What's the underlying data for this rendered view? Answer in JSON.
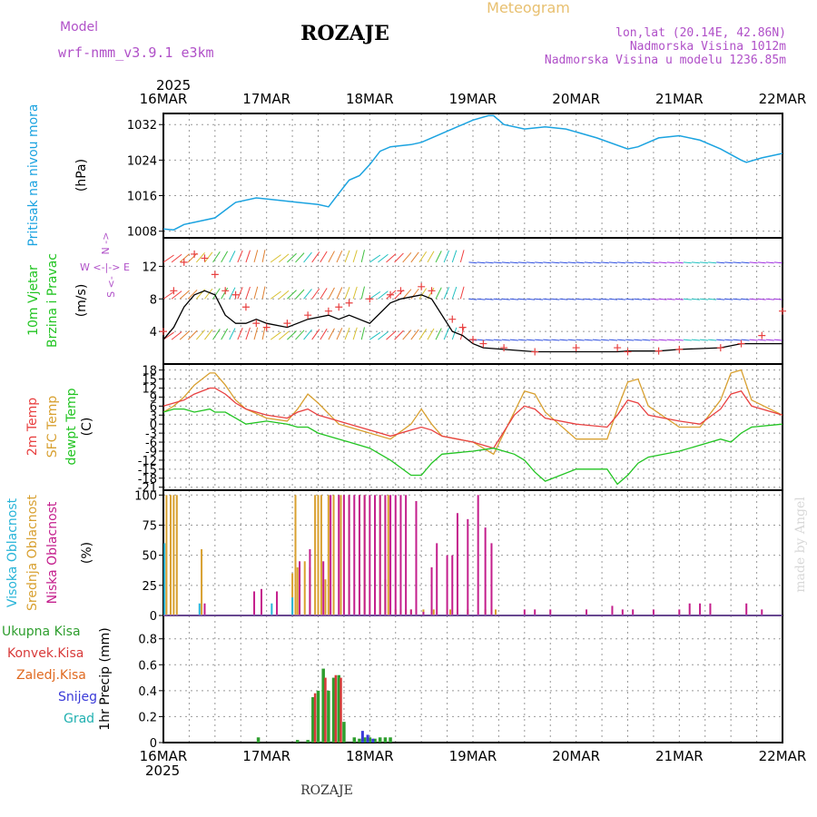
{
  "header": {
    "model_label": "Model",
    "model_name": "wrf-nmm_v3.9.1 e3km",
    "station": "ROZAJE",
    "chart_title": "Meteogram",
    "lonlat": "lon,lat (20.14E, 42.86N)",
    "altitude": "Nadmorska Visina 1012m",
    "model_altitude": "Nadmorska Visina u modelu 1236.85m",
    "year_top": "2025",
    "year_bottom": "2025",
    "footer_station": "ROZAJE",
    "credit": "made by Angel"
  },
  "colors": {
    "pressure": "#1ba3e0",
    "temp2m": "#e84040",
    "sfc": "#d8a030",
    "dewpt": "#22c422",
    "high_cloud": "#28b4d8",
    "mid_cloud": "#d8a030",
    "low_cloud": "#c41e8c",
    "total_precip": "#2e9e2e",
    "conv_precip": "#d83a3a",
    "frz_precip": "#e06a20",
    "snow": "#3a3ad8",
    "hail": "#20b0b0",
    "wind_speed": "#000000",
    "gust": "#e84040",
    "model_label": "#b050c8"
  },
  "chart_data": [
    {
      "type": "line",
      "id": "pressure",
      "title": "Pritisak na nivou mora",
      "ylabel": "(hPa)",
      "ylim": [
        1006.5,
        1034.5
      ],
      "yticks": [
        1008,
        1016,
        1024,
        1032
      ],
      "x_days": [
        0,
        0.1,
        0.2,
        0.3,
        0.5,
        0.7,
        0.9,
        1.1,
        1.3,
        1.5,
        1.6,
        1.7,
        1.8,
        1.9,
        2.0,
        2.1,
        2.2,
        2.4,
        2.5,
        2.6,
        2.8,
        3.0,
        3.15,
        3.2,
        3.3,
        3.5,
        3.7,
        3.9,
        4.2,
        4.5,
        4.6,
        4.8,
        5.0,
        5.2,
        5.4,
        5.6,
        5.65,
        5.8,
        6.0
      ],
      "values": [
        1008.5,
        1008.3,
        1009.5,
        1010.0,
        1011.0,
        1014.5,
        1015.5,
        1015.0,
        1014.5,
        1014.0,
        1013.5,
        1016.5,
        1019.5,
        1020.5,
        1023.0,
        1026.0,
        1027.0,
        1027.5,
        1028.0,
        1029.0,
        1031.0,
        1033.0,
        1034.0,
        1034.0,
        1032.0,
        1031.0,
        1031.5,
        1031.0,
        1029.0,
        1026.5,
        1027.0,
        1029.0,
        1029.5,
        1028.5,
        1026.5,
        1024.0,
        1023.5,
        1024.5,
        1025.5
      ]
    },
    {
      "type": "line",
      "id": "wind",
      "title": "10m Vjetar",
      "subtitle": "Brzina i Pravac",
      "ylabel": "(m/s)",
      "ylim": [
        0,
        15.5
      ],
      "yticks": [
        4,
        8,
        12
      ],
      "compass": {
        "n": "N",
        "w": "W",
        "e": "E",
        "s": "S"
      },
      "x_days": [
        0,
        0.1,
        0.2,
        0.3,
        0.4,
        0.5,
        0.6,
        0.7,
        0.8,
        0.9,
        1.0,
        1.2,
        1.4,
        1.6,
        1.7,
        1.8,
        2.0,
        2.2,
        2.3,
        2.5,
        2.6,
        2.8,
        2.9,
        3.0,
        3.1,
        3.3,
        3.6,
        4.0,
        4.4,
        4.5,
        4.8,
        5.0,
        5.4,
        5.6,
        5.8,
        6.0
      ],
      "series": [
        {
          "name": "speed",
          "values": [
            3.0,
            4.5,
            7.0,
            8.5,
            9.0,
            8.5,
            6.0,
            5.0,
            5.0,
            5.5,
            5.0,
            4.5,
            5.5,
            6.0,
            5.5,
            6.0,
            5.0,
            7.5,
            8.0,
            8.5,
            8.0,
            4.0,
            3.5,
            2.5,
            2.0,
            1.8,
            1.5,
            1.5,
            1.5,
            1.6,
            1.6,
            1.8,
            2.0,
            2.5,
            2.5,
            2.5
          ]
        },
        {
          "name": "gust",
          "values": [
            4.0,
            9.0,
            12.5,
            13.5,
            13.0,
            11.0,
            9.0,
            8.5,
            7.0,
            5.0,
            4.5,
            5.0,
            6.0,
            6.5,
            7.0,
            7.5,
            8.0,
            8.5,
            9.0,
            9.5,
            9.0,
            5.5,
            4.5,
            3.0,
            2.5,
            2.0,
            1.5,
            2.0,
            2.0,
            1.5,
            1.6,
            1.8,
            2.0,
            2.5,
            3.5,
            6.5
          ]
        }
      ]
    },
    {
      "type": "line",
      "id": "temperature",
      "title": "2m Temp",
      "title2": "SFC Temp",
      "title3": "dewpt Temp",
      "ylabel": "(C)",
      "ylim": [
        -22,
        20
      ],
      "yticks": [
        18,
        15,
        12,
        9,
        6,
        3,
        0,
        -3,
        -6,
        -9,
        -12,
        -15,
        -18,
        -21
      ],
      "x_days": [
        0,
        0.1,
        0.2,
        0.3,
        0.45,
        0.5,
        0.6,
        0.7,
        0.8,
        1.0,
        1.2,
        1.3,
        1.4,
        1.5,
        1.7,
        2.0,
        2.2,
        2.4,
        2.5,
        2.6,
        2.7,
        3.0,
        3.2,
        3.4,
        3.5,
        3.6,
        3.7,
        4.0,
        4.3,
        4.4,
        4.5,
        4.6,
        4.7,
        5.0,
        5.2,
        5.4,
        5.5,
        5.6,
        5.7,
        6.0
      ],
      "series": [
        {
          "name": "2m Temp",
          "values": [
            6,
            7,
            8,
            10,
            12,
            12,
            10,
            7,
            5,
            3,
            2,
            4,
            5,
            3,
            1,
            -2,
            -4,
            -2,
            -1,
            -2,
            -4,
            -6,
            -8,
            3,
            6,
            5,
            2,
            0,
            -1,
            3,
            8,
            7,
            3,
            1,
            0,
            5,
            10,
            11,
            6,
            3
          ]
        },
        {
          "name": "SFC Temp",
          "values": [
            4,
            6,
            9,
            13,
            17,
            17,
            13,
            8,
            5,
            2,
            1,
            5,
            10,
            7,
            0,
            -3,
            -5,
            0,
            5,
            0,
            -4,
            -6,
            -10,
            4,
            11,
            10,
            4,
            -5,
            -5,
            5,
            14,
            15,
            6,
            -1,
            -1,
            8,
            17,
            18,
            8,
            3
          ]
        },
        {
          "name": "dewpt Temp",
          "values": [
            4,
            5,
            5,
            4,
            5,
            4,
            4,
            2,
            0,
            1,
            0,
            -1,
            -1,
            -3,
            -5,
            -8,
            -12,
            -17,
            -17,
            -13,
            -10,
            -9,
            -8,
            -10,
            -12,
            -16,
            -19,
            -15,
            -15,
            -20,
            -17,
            -13,
            -11,
            -9,
            -7,
            -5,
            -6,
            -3,
            -1,
            0
          ]
        }
      ]
    },
    {
      "type": "bar",
      "id": "clouds",
      "title": "Visoka Oblacnost",
      "title2": "Srednja Oblacnost",
      "title3": "Niska Oblacnost",
      "ylabel": "(%)",
      "ylim": [
        0,
        104
      ],
      "yticks": [
        0,
        25,
        50,
        75,
        100
      ],
      "series": [
        {
          "name": "Visoka",
          "x_days": [
            0.01,
            0.35,
            1.05,
            1.25
          ],
          "values": [
            60,
            10,
            10,
            15
          ]
        },
        {
          "name": "Srednja",
          "x_days": [
            0.03,
            0.07,
            0.1,
            0.13,
            0.37,
            1.25,
            1.28,
            1.3,
            1.37,
            1.42,
            1.47,
            1.5,
            1.53,
            1.57,
            1.6,
            1.65,
            1.72,
            1.8,
            1.9,
            1.95,
            2.1,
            2.15,
            2.18,
            2.25,
            2.3,
            2.35,
            2.4,
            2.45,
            2.52,
            2.62,
            2.78,
            2.85,
            2.95,
            3.12,
            3.22
          ],
          "values": [
            100,
            100,
            100,
            100,
            55,
            35,
            100,
            40,
            45,
            40,
            100,
            100,
            100,
            30,
            100,
            100,
            100,
            100,
            100,
            100,
            100,
            30,
            100,
            5,
            5,
            5,
            5,
            5,
            5,
            5,
            5,
            5,
            5,
            5,
            5
          ]
        },
        {
          "name": "Niska",
          "x_days": [
            0.4,
            0.88,
            0.95,
            1.1,
            1.32,
            1.42,
            1.55,
            1.62,
            1.7,
            1.75,
            1.8,
            1.85,
            1.9,
            1.95,
            2.0,
            2.05,
            2.1,
            2.15,
            2.2,
            2.25,
            2.3,
            2.35,
            2.4,
            2.45,
            2.52,
            2.6,
            2.65,
            2.75,
            2.8,
            2.85,
            2.95,
            3.05,
            3.12,
            3.18,
            3.5,
            3.6,
            3.75,
            4.1,
            4.35,
            4.45,
            4.55,
            4.75,
            5.0,
            5.1,
            5.2,
            5.3,
            5.65,
            5.8
          ],
          "values": [
            10,
            20,
            22,
            20,
            45,
            55,
            45,
            100,
            100,
            100,
            100,
            100,
            100,
            100,
            100,
            100,
            100,
            100,
            100,
            100,
            100,
            100,
            5,
            95,
            3,
            40,
            60,
            50,
            50,
            85,
            80,
            100,
            73,
            60,
            5,
            5,
            5,
            5,
            8,
            5,
            5,
            5,
            5,
            10,
            10,
            10,
            10,
            5
          ]
        }
      ]
    },
    {
      "type": "bar",
      "id": "precip",
      "title": "1hr Precip",
      "ylabel": "(mm)",
      "ylim": [
        0,
        0.98
      ],
      "yticks": [
        0,
        0.2,
        0.4,
        0.6,
        0.8
      ],
      "legend": [
        "Ukupna Kisa",
        "Konvek.Kisa",
        "Zaledj.Kisa",
        "Snijeg",
        "Grad"
      ],
      "series": [
        {
          "name": "Ukupna Kisa",
          "x_days": [
            0.92,
            1.3,
            1.4,
            1.45,
            1.5,
            1.55,
            1.6,
            1.65,
            1.7,
            1.75,
            1.85,
            1.9,
            1.95,
            2.0,
            2.05,
            2.1,
            2.15,
            2.2
          ],
          "values": [
            0.04,
            0.02,
            0.02,
            0.35,
            0.4,
            0.57,
            0.4,
            0.5,
            0.52,
            0.16,
            0.04,
            0.03,
            0.04,
            0.04,
            0.03,
            0.04,
            0.04,
            0.04
          ]
        },
        {
          "name": "Konvek.Kisa",
          "x_days": [
            1.47,
            1.57,
            1.67,
            1.72
          ],
          "values": [
            0.38,
            0.5,
            0.52,
            0.5
          ]
        },
        {
          "name": "Snijeg",
          "x_days": [
            1.93,
            1.98,
            2.03
          ],
          "values": [
            0.09,
            0.06,
            0.03
          ]
        }
      ]
    }
  ],
  "x_axis": {
    "days": [
      "16MAR",
      "17MAR",
      "18MAR",
      "19MAR",
      "20MAR",
      "21MAR",
      "22MAR"
    ]
  }
}
